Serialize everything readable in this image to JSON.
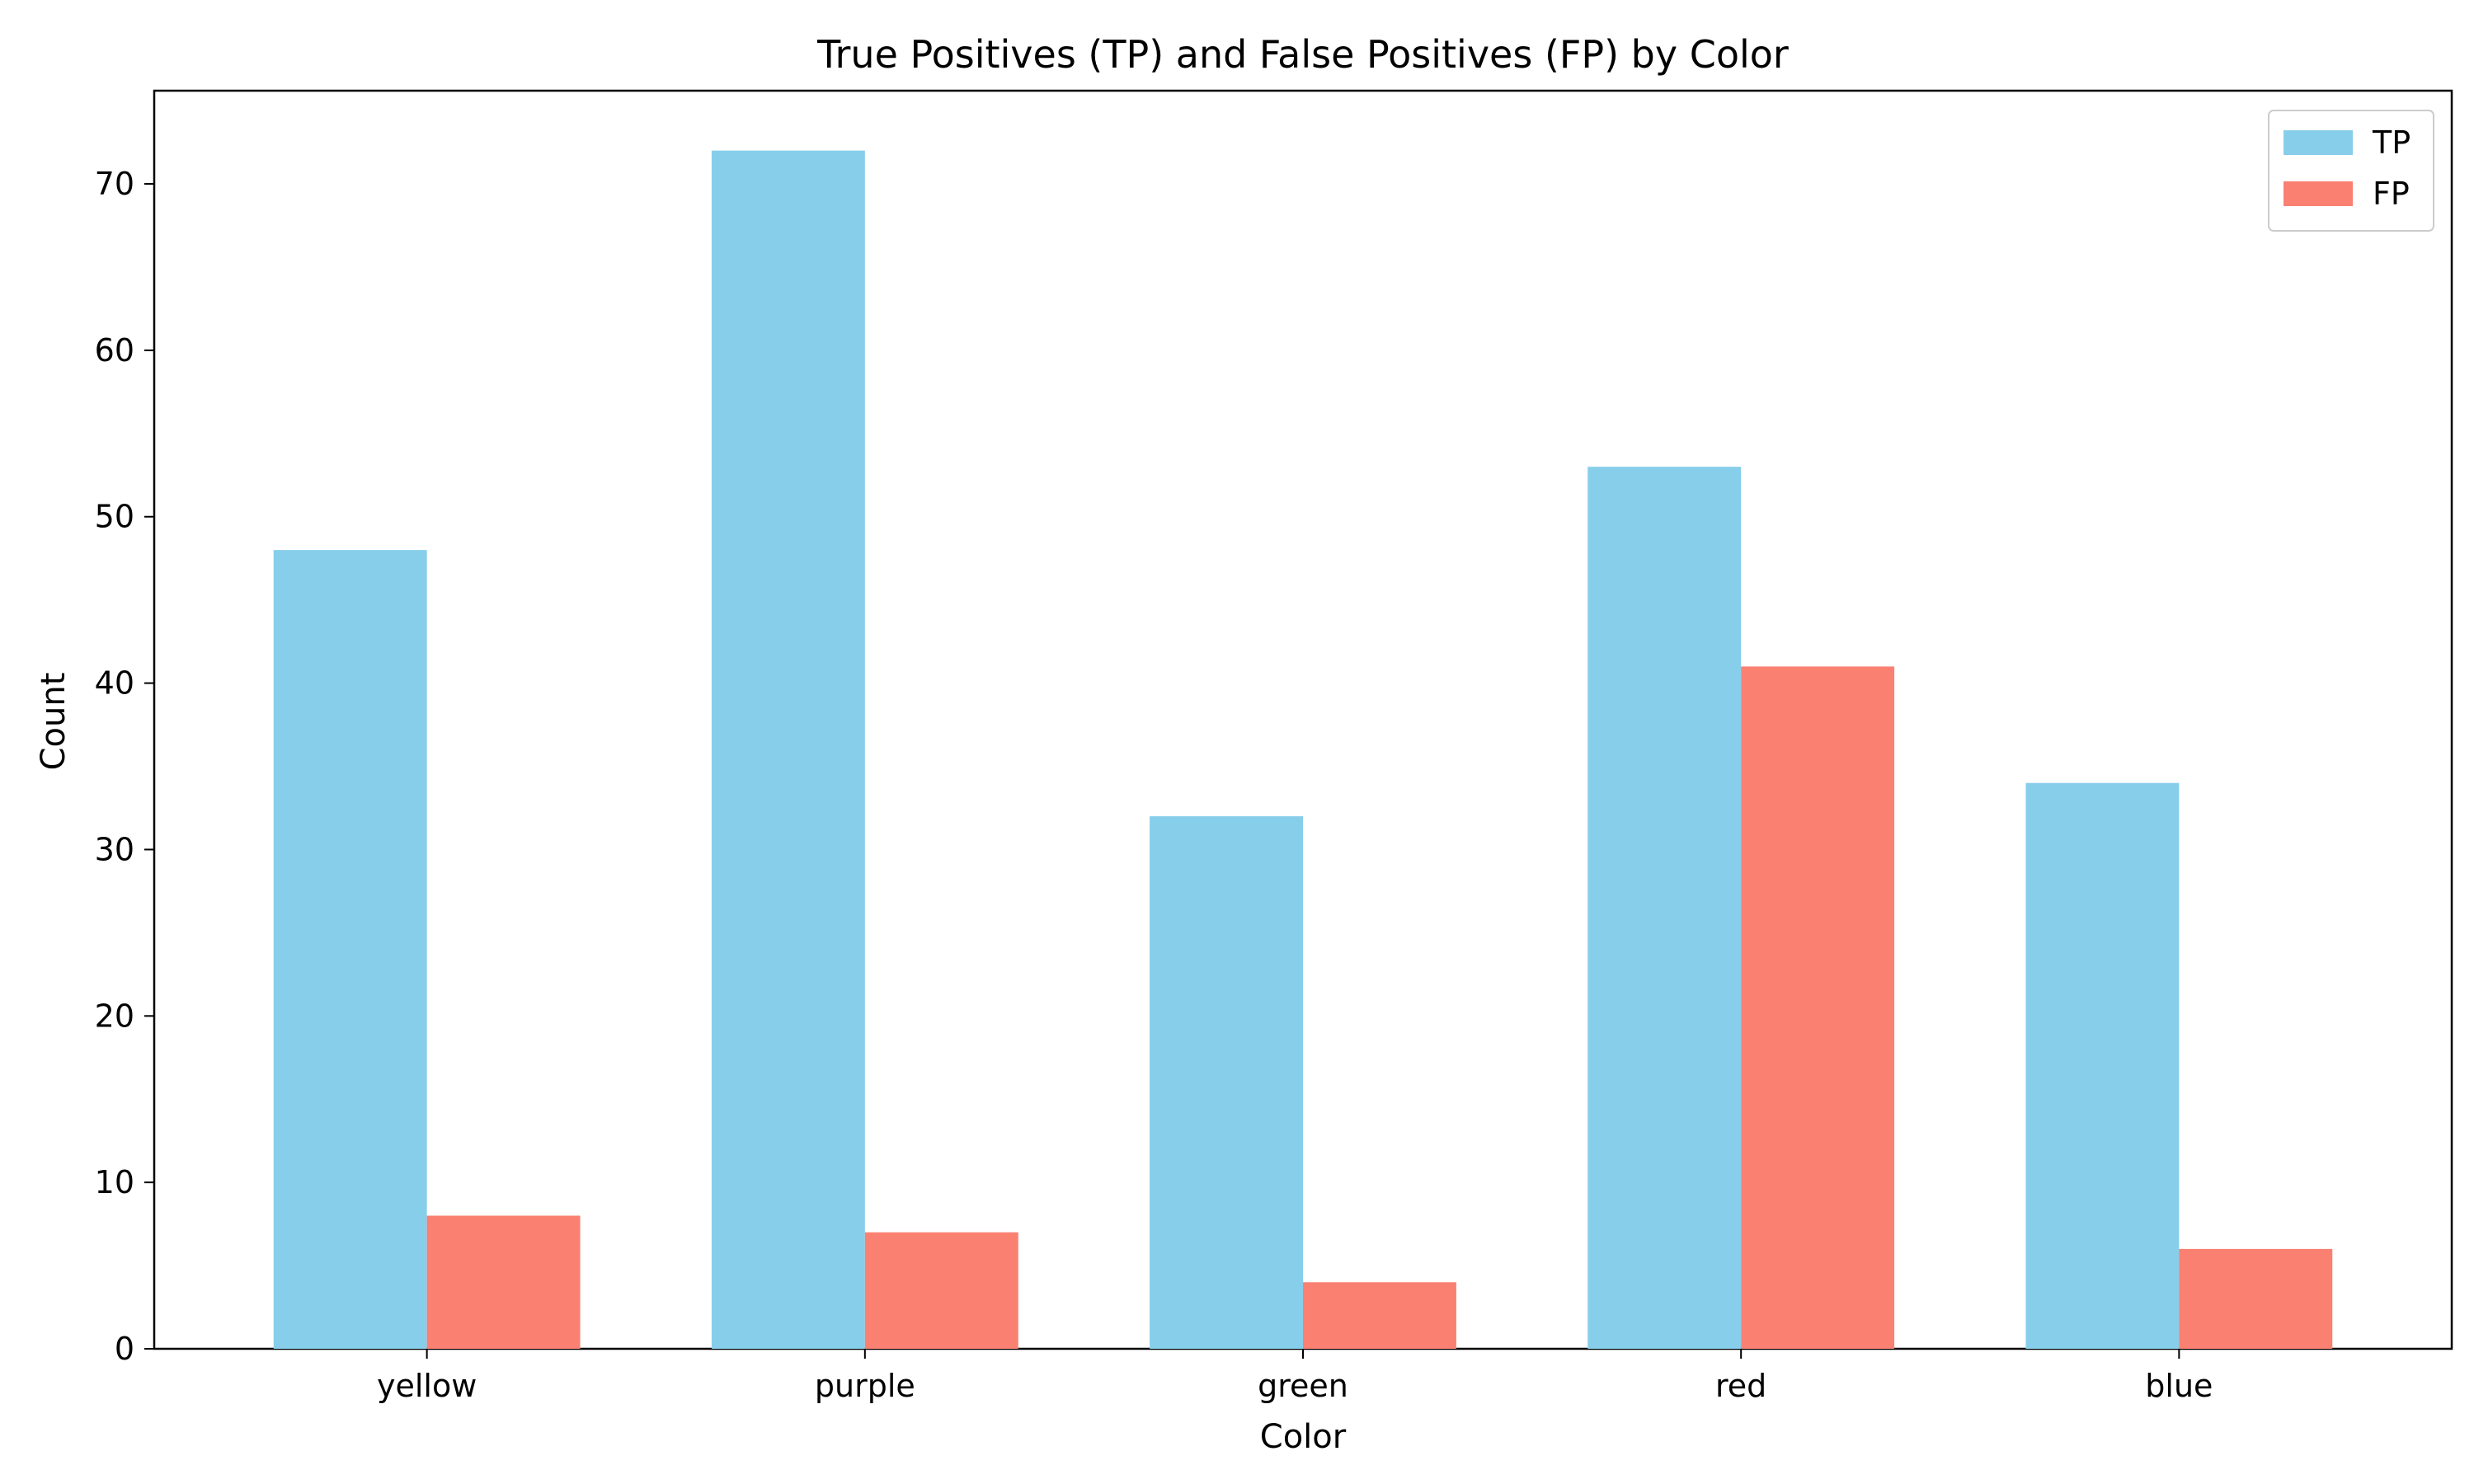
{
  "chart_data": {
    "type": "bar",
    "title": "True Positives (TP) and False Positives (FP) by Color",
    "xlabel": "Color",
    "ylabel": "Count",
    "categories": [
      "yellow",
      "purple",
      "green",
      "red",
      "blue"
    ],
    "series": [
      {
        "name": "TP",
        "color": "#87CEEB",
        "values": [
          48,
          72,
          32,
          53,
          34
        ]
      },
      {
        "name": "FP",
        "color": "#FA8072",
        "values": [
          8,
          7,
          4,
          41,
          6
        ]
      }
    ],
    "ylim": [
      0,
      75.6
    ],
    "yticks": [
      0,
      10,
      20,
      30,
      40,
      50,
      60,
      70
    ],
    "grid": false,
    "legend_position": "top-right"
  }
}
